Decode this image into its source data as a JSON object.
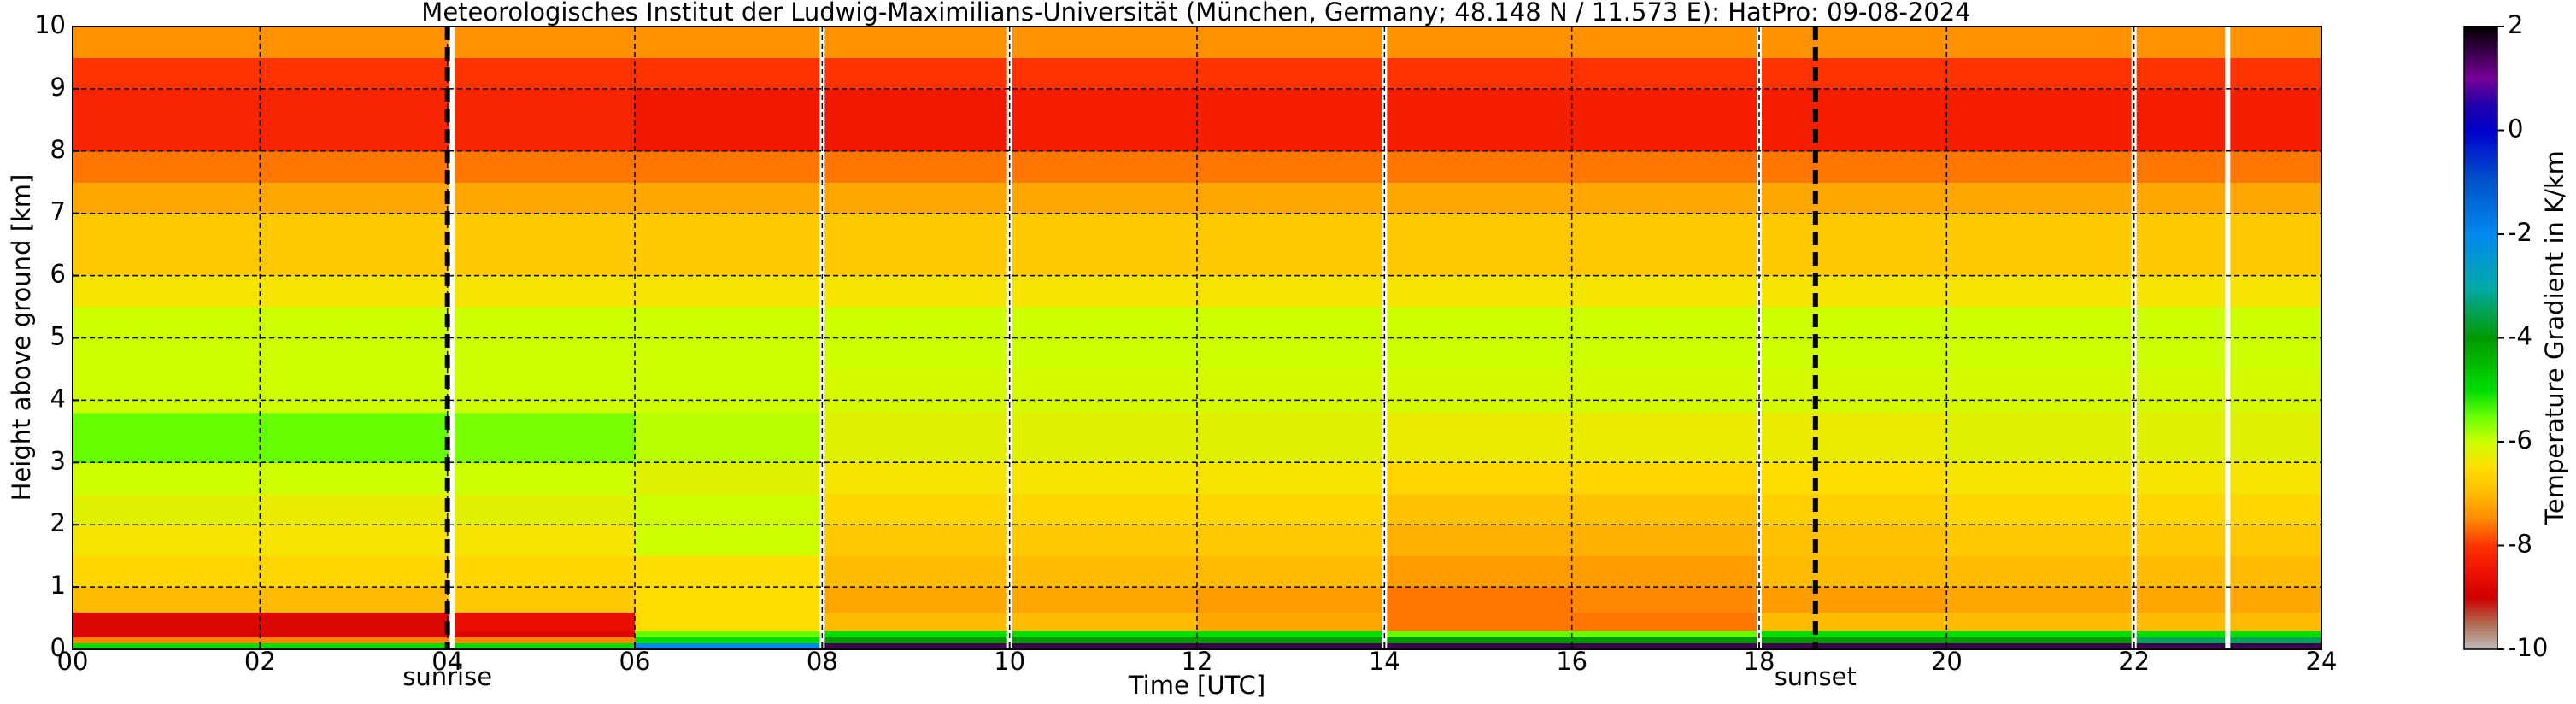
{
  "chart_data": {
    "type": "heatmap",
    "title": "Meteorologisches Institut der Ludwig-Maximilians-Universität (München, Germany; 48.148 N / 11.573 E):    HatPro: 09-08-2024",
    "x_label": "Time [UTC]",
    "y_label": "Height above ground [km]",
    "colorbar_label": "Temperature Gradient in K/km",
    "xlim": [
      0,
      24
    ],
    "ylim": [
      0,
      10
    ],
    "xticks": [
      {
        "value": 0,
        "label": "00"
      },
      {
        "value": 2,
        "label": "02"
      },
      {
        "value": 4,
        "label": "04"
      },
      {
        "value": 6,
        "label": "06"
      },
      {
        "value": 8,
        "label": "08"
      },
      {
        "value": 10,
        "label": "10"
      },
      {
        "value": 12,
        "label": "12"
      },
      {
        "value": 14,
        "label": "14"
      },
      {
        "value": 16,
        "label": "16"
      },
      {
        "value": 18,
        "label": "18"
      },
      {
        "value": 20,
        "label": "20"
      },
      {
        "value": 22,
        "label": "22"
      },
      {
        "value": 24,
        "label": "24"
      }
    ],
    "yticks": [
      0,
      1,
      2,
      3,
      4,
      5,
      6,
      7,
      8,
      9,
      10
    ],
    "grid": true,
    "clim": [
      -10,
      2
    ],
    "cticks": [
      -10,
      -8,
      -6,
      -4,
      -2,
      0,
      2
    ],
    "colorscale": [
      [
        -10,
        "#bfbfbf"
      ],
      [
        -9.5,
        "#b06a50"
      ],
      [
        -9,
        "#d00000"
      ],
      [
        -8.5,
        "#ee1100"
      ],
      [
        -8,
        "#ff3300"
      ],
      [
        -7.5,
        "#ff8800"
      ],
      [
        -7,
        "#ffbb00"
      ],
      [
        -6.5,
        "#ffdd00"
      ],
      [
        -6,
        "#ccff00"
      ],
      [
        -5.5,
        "#66ff00"
      ],
      [
        -5,
        "#00dd00"
      ],
      [
        -4,
        "#009900"
      ],
      [
        -3,
        "#00aaaa"
      ],
      [
        -2,
        "#0088ee"
      ],
      [
        -1,
        "#0055cc"
      ],
      [
        0,
        "#0000cc"
      ],
      [
        0.5,
        "#2200aa"
      ],
      [
        1,
        "#770099"
      ],
      [
        2,
        "#000000"
      ]
    ],
    "x_edges": [
      0,
      2,
      4,
      6,
      8,
      10,
      12,
      14,
      16,
      18,
      20,
      22,
      24
    ],
    "y_edges": [
      0,
      0.1,
      0.2,
      0.3,
      0.6,
      1,
      1.5,
      2,
      2.5,
      3,
      3.8,
      4.5,
      5.5,
      6,
      7,
      7.5,
      8,
      9,
      9.5,
      10
    ],
    "z": [
      [
        -5,
        -5,
        -5,
        -2,
        1.5,
        1.5,
        1.5,
        1.5,
        1.5,
        1.5,
        1.5,
        1.5
      ],
      [
        -7.5,
        -7.5,
        -7.5,
        -5,
        -4,
        -4,
        -4,
        -4,
        -4,
        -4,
        -4,
        -3.5
      ],
      [
        -8.8,
        -8.8,
        -8.8,
        -5.5,
        -5,
        -5,
        -5,
        -5.5,
        -5.5,
        -5,
        -5,
        -5
      ],
      [
        -8.8,
        -8.8,
        -8.6,
        -6.5,
        -7,
        -7,
        -7.2,
        -7.6,
        -7.6,
        -7,
        -7,
        -7
      ],
      [
        -7,
        -7,
        -6.8,
        -6.5,
        -7.2,
        -7.2,
        -7.3,
        -7.6,
        -7.5,
        -7.3,
        -7.2,
        -7.2
      ],
      [
        -6.6,
        -6.6,
        -6.6,
        -6.5,
        -7,
        -7,
        -7,
        -7.3,
        -7.3,
        -7,
        -7,
        -7
      ],
      [
        -6.4,
        -6.4,
        -6.4,
        -6,
        -6.8,
        -6.8,
        -6.8,
        -7.1,
        -7.1,
        -6.9,
        -6.8,
        -6.8
      ],
      [
        -6.2,
        -6.3,
        -6.2,
        -6,
        -6.6,
        -6.6,
        -6.6,
        -6.9,
        -6.9,
        -6.7,
        -6.6,
        -6.6
      ],
      [
        -6,
        -6,
        -6,
        -6.2,
        -6.4,
        -6.4,
        -6.4,
        -6.6,
        -6.6,
        -6.5,
        -6.4,
        -6.4
      ],
      [
        -5.5,
        -5.5,
        -5.6,
        -5.9,
        -6.2,
        -6.2,
        -6.2,
        -6.3,
        -6.3,
        -6.3,
        -6.2,
        -6.2
      ],
      [
        -6,
        -6,
        -6,
        -6,
        -6.1,
        -6.1,
        -6.1,
        -6.1,
        -6.1,
        -6.1,
        -6.1,
        -6.1
      ],
      [
        -6,
        -6,
        -6,
        -6,
        -6,
        -6,
        -6,
        -6,
        -6,
        -6,
        -6,
        -6
      ],
      [
        -6.4,
        -6.4,
        -6.4,
        -6.4,
        -6.4,
        -6.4,
        -6.4,
        -6.4,
        -6.4,
        -6.4,
        -6.4,
        -6.4
      ],
      [
        -6.8,
        -6.8,
        -6.8,
        -6.8,
        -6.8,
        -6.8,
        -6.8,
        -6.8,
        -6.8,
        -6.8,
        -6.8,
        -6.8
      ],
      [
        -7.2,
        -7.2,
        -7.2,
        -7.2,
        -7.2,
        -7.2,
        -7.2,
        -7.2,
        -7.2,
        -7.2,
        -7.2,
        -7.2
      ],
      [
        -7.6,
        -7.6,
        -7.6,
        -7.6,
        -7.6,
        -7.6,
        -7.6,
        -7.6,
        -7.6,
        -7.6,
        -7.6,
        -7.6
      ],
      [
        -8.2,
        -8.2,
        -8.2,
        -8.4,
        -8.4,
        -8.3,
        -8.3,
        -8.3,
        -8.3,
        -8.3,
        -8.3,
        -8.3
      ],
      [
        -8,
        -8,
        -8,
        -8,
        -8,
        -8,
        -8,
        -8,
        -8,
        -8,
        -8,
        -8
      ],
      [
        -7.4,
        -7.4,
        -7.4,
        -7.4,
        -7.4,
        -7.4,
        -7.4,
        -7.4,
        -7.4,
        -7.4,
        -7.4,
        -7.4
      ]
    ],
    "missing_times": [
      4.05,
      8,
      10,
      14,
      18,
      22,
      23
    ],
    "annotations": [
      {
        "text": "sunrise",
        "x": 4.0
      },
      {
        "text": "sunset",
        "x": 18.6
      }
    ]
  }
}
